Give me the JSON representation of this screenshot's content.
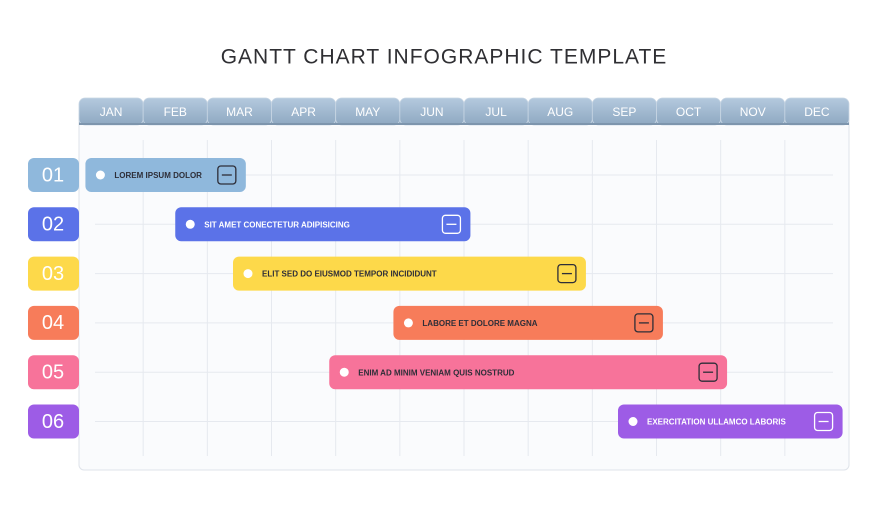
{
  "chart_data": {
    "type": "gantt",
    "title": "GANTT CHART INFOGRAPHIC TEMPLATE",
    "categories": [
      "JAN",
      "FEB",
      "MAR",
      "APR",
      "MAY",
      "JUN",
      "JUL",
      "AUG",
      "SEP",
      "OCT",
      "NOV",
      "DEC"
    ],
    "xlim": [
      0,
      12
    ],
    "tasks": [
      {
        "label": "01",
        "name": "LOREM IPSUM DOLOR",
        "color": "#8fb8dc",
        "start": 0.1,
        "end": 2.6
      },
      {
        "label": "02",
        "name": "SIT AMET CONECTETUR ADIPISICING",
        "color": "#5b72e8",
        "start": 1.5,
        "end": 6.1
      },
      {
        "label": "03",
        "name": "ELIT SED DO EIUSMOD TEMPOR INCIDIDUNT",
        "color": "#fdd94a",
        "start": 2.4,
        "end": 7.9
      },
      {
        "label": "04",
        "name": "LABORE ET DOLORE MAGNA",
        "color": "#f77c5a",
        "start": 4.9,
        "end": 9.1
      },
      {
        "label": "05",
        "name": "ENIM AD MINIM VENIAM QUIS NOSTRUD",
        "color": "#f7739a",
        "start": 3.9,
        "end": 10.1
      },
      {
        "label": "06",
        "name": "EXERCITATION ULLAMCO LABORIS",
        "color": "#9d5ce6",
        "start": 8.4,
        "end": 11.9
      }
    ]
  }
}
